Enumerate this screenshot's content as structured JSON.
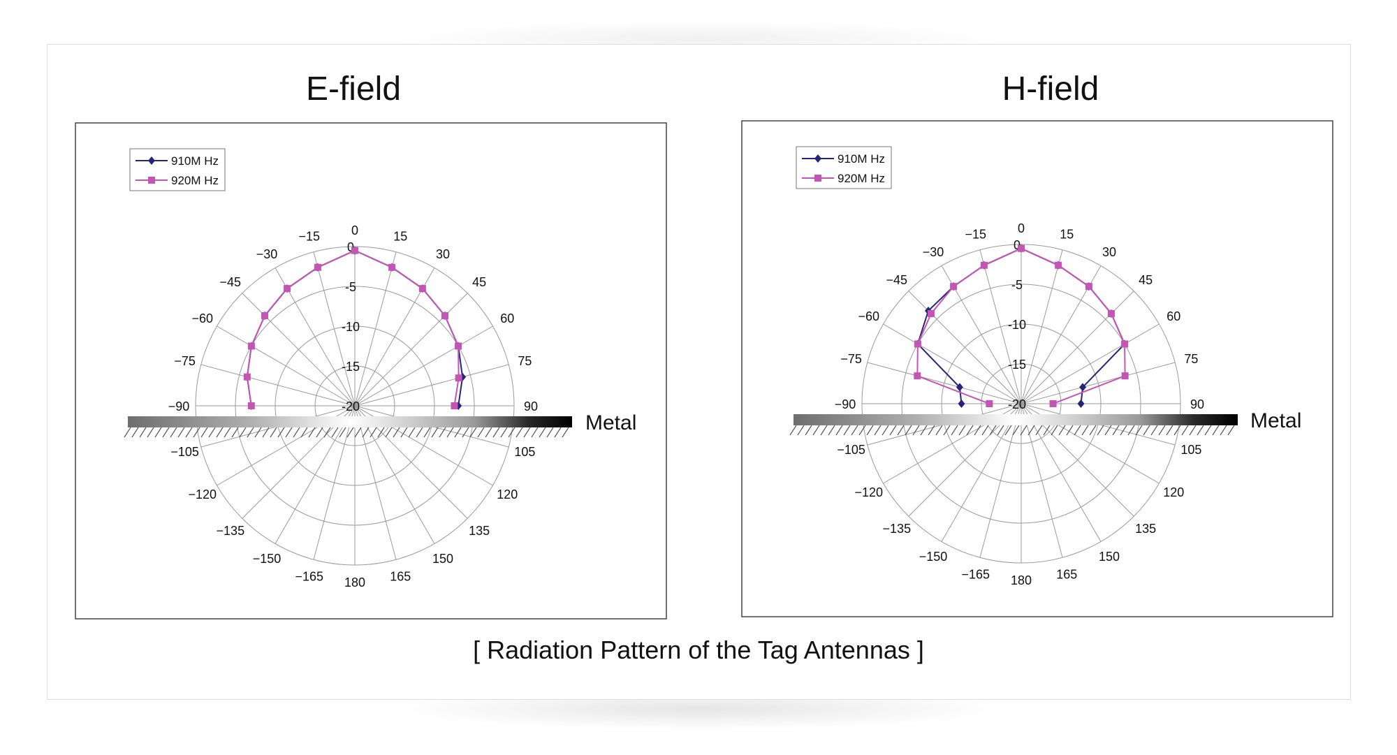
{
  "caption": "[ Radiation Pattern of the Tag Antennas ]",
  "colors": {
    "s910": "#24247a",
    "s920": "#c455b4",
    "grid": "#9a9a9a",
    "frame": "#444444"
  },
  "chart_data": [
    {
      "type": "polar-line",
      "title": "E-field",
      "angle_ticks": [
        "0",
        "15",
        "30",
        "45",
        "60",
        "75",
        "90",
        "105",
        "120",
        "135",
        "150",
        "165",
        "180",
        "−165",
        "−150",
        "−135",
        "−120",
        "−105",
        "−90",
        "−75",
        "−60",
        "−45",
        "−30",
        "−15"
      ],
      "radial_ticks": [
        "0",
        "-5",
        "-10",
        "-15",
        "-20"
      ],
      "rlim": [
        -20,
        0
      ],
      "metal_label": "Metal",
      "legend": {
        "position": "top-left",
        "entries": [
          "910M Hz",
          "920M Hz"
        ]
      },
      "series": [
        {
          "name": "910M Hz",
          "angles": [
            -90,
            -75,
            -60,
            -45,
            -30,
            -15,
            0,
            15,
            30,
            45,
            60,
            75,
            90
          ],
          "values": [
            -7,
            -6,
            -5,
            -4,
            -3,
            -2,
            -0.5,
            -2,
            -3,
            -4,
            -5,
            -6,
            -7
          ]
        },
        {
          "name": "920M Hz",
          "angles": [
            -90,
            -75,
            -60,
            -45,
            -30,
            -15,
            0,
            15,
            30,
            45,
            60,
            75,
            90
          ],
          "values": [
            -7,
            -6,
            -5,
            -4,
            -3,
            -2,
            -0.5,
            -2,
            -3,
            -4,
            -5,
            -6.5,
            -7.5
          ]
        }
      ]
    },
    {
      "type": "polar-line",
      "title": "H-field",
      "angle_ticks": [
        "0",
        "15",
        "30",
        "45",
        "60",
        "75",
        "90",
        "105",
        "120",
        "135",
        "150",
        "165",
        "180",
        "−165",
        "−150",
        "−135",
        "−120",
        "−105",
        "−90",
        "−75",
        "−60",
        "−45",
        "−30",
        "−15"
      ],
      "radial_ticks": [
        "0",
        "-5",
        "-10",
        "-15",
        "-20"
      ],
      "rlim": [
        -20,
        0
      ],
      "metal_label": "Metal",
      "legend": {
        "position": "top-left",
        "entries": [
          "910M Hz",
          "920M Hz"
        ]
      },
      "series": [
        {
          "name": "910M Hz",
          "angles": [
            -90,
            -75,
            -60,
            -45,
            -30,
            -15,
            0,
            15,
            30,
            45,
            60,
            75,
            90
          ],
          "values": [
            -12.5,
            -12,
            -5,
            -3.5,
            -3,
            -2,
            -0.5,
            -2,
            -3,
            -4,
            -5,
            -12,
            -12.5
          ]
        },
        {
          "name": "920M Hz",
          "angles": [
            -90,
            -75,
            -60,
            -45,
            -30,
            -15,
            0,
            15,
            30,
            45,
            60,
            75,
            90
          ],
          "values": [
            -16,
            -6.5,
            -5,
            -4,
            -3,
            -2,
            -0.5,
            -2,
            -3,
            -4,
            -5,
            -6.5,
            -16
          ]
        }
      ]
    }
  ]
}
